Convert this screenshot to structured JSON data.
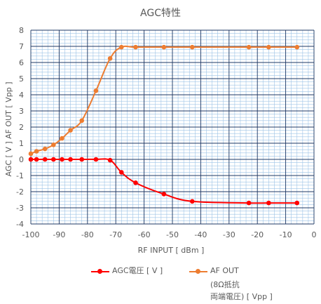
{
  "chart_data": {
    "type": "scatter",
    "title": "AGC特性",
    "xlabel": "RF INPUT [ dBm ]",
    "ylabel": "AGC [ V ]    AF OUT [ Vpp ]",
    "xlim": [
      -100,
      0
    ],
    "ylim": [
      -4,
      8
    ],
    "x_ticks": [
      "-100",
      "-90",
      "-80",
      "-70",
      "-60",
      "-50",
      "-40",
      "-30",
      "-20",
      "-10",
      "0"
    ],
    "y_ticks": [
      "-4",
      "-3",
      "-2",
      "-1",
      "0",
      "1",
      "2",
      "3",
      "4",
      "5",
      "6",
      "7",
      "8"
    ],
    "grid": true,
    "legend_position": "bottom",
    "series": [
      {
        "name": "AGC電圧 [ V ]",
        "color": "#FF0000",
        "line": "smooth",
        "x": [
          -100,
          -98,
          -95,
          -92,
          -89,
          -86,
          -82,
          -77,
          -72,
          -68,
          -63,
          -53,
          -43,
          -23,
          -16,
          -6
        ],
        "y": [
          0,
          0,
          0,
          0,
          0,
          0,
          0,
          0,
          -0.05,
          -0.8,
          -1.45,
          -2.15,
          -2.6,
          -2.7,
          -2.7,
          -2.7
        ]
      },
      {
        "name": "AF OUT\n(8Ω抵抗\n両端電圧) [ Vpp ]",
        "color": "#ED7D31",
        "line": "smooth",
        "x": [
          -100,
          -98,
          -95,
          -92,
          -89,
          -86,
          -82,
          -77,
          -72,
          -68,
          -63,
          -53,
          -43,
          -23,
          -16,
          -6
        ],
        "y": [
          0.35,
          0.5,
          0.65,
          0.9,
          1.3,
          1.8,
          2.4,
          4.25,
          6.25,
          6.95,
          6.95,
          6.95,
          6.95,
          6.95,
          6.95,
          6.95
        ]
      }
    ]
  },
  "legend": {
    "agc_label": "AGC電圧 [ V ]",
    "af_label_line1": "AF OUT",
    "af_label_line2": "(8Ω抵抗",
    "af_label_line3": "両端電圧) [ Vpp ]"
  }
}
